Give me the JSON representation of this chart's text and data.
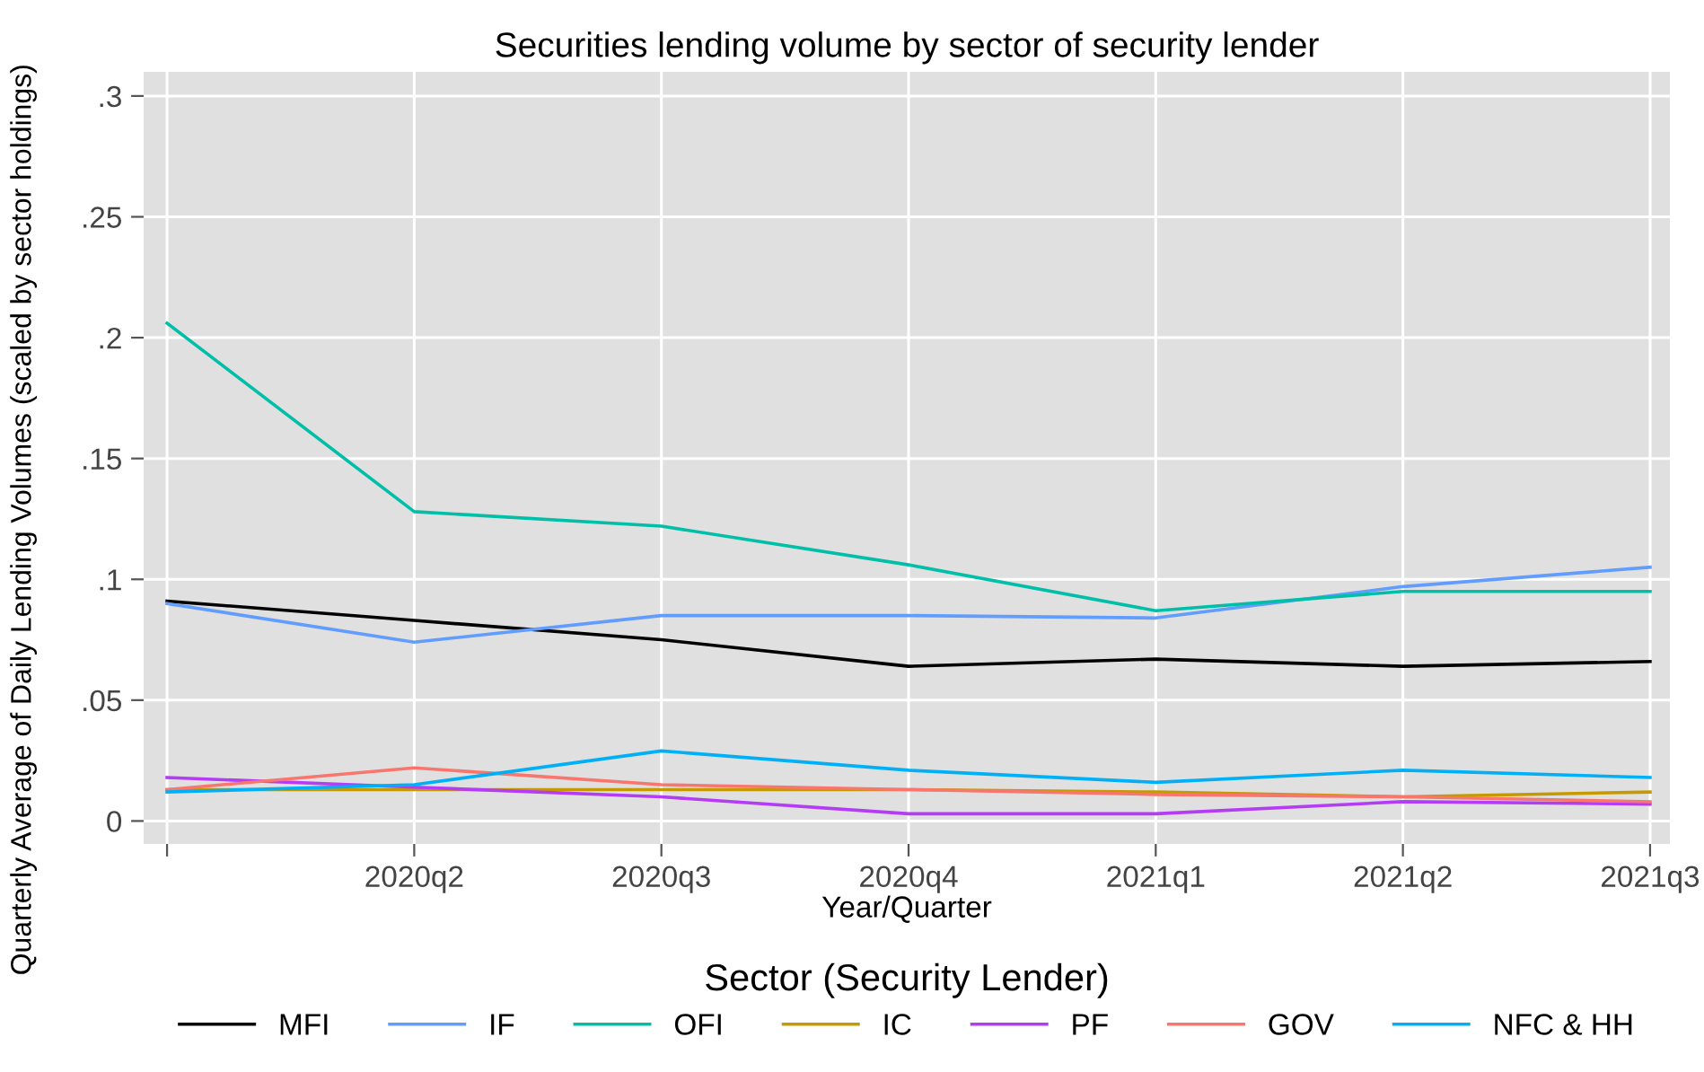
{
  "chart_data": {
    "type": "line",
    "title": "Securities lending volume by sector of security lender",
    "xlabel": "Year/Quarter",
    "ylabel": "Quarterly Average of Daily Lending Volumes (scaled by sector holdings)",
    "legend_title": "Sector (Security Lender)",
    "categories": [
      null,
      "2020q2",
      "2020q3",
      "2020q4",
      "2021q1",
      "2021q2",
      "2021q3"
    ],
    "series": [
      {
        "name": "MFI",
        "color": "#000000",
        "values": [
          0.091,
          0.083,
          0.075,
          0.064,
          0.067,
          0.064,
          0.066
        ]
      },
      {
        "name": "IF",
        "color": "#619cff",
        "values": [
          0.09,
          0.074,
          0.085,
          0.085,
          0.084,
          0.097,
          0.105
        ]
      },
      {
        "name": "OFI",
        "color": "#00bfa8",
        "values": [
          0.206,
          0.128,
          0.122,
          0.106,
          0.087,
          0.095,
          0.095
        ]
      },
      {
        "name": "IC",
        "color": "#c49a00",
        "values": [
          0.013,
          0.013,
          0.013,
          0.013,
          0.012,
          0.01,
          0.012
        ]
      },
      {
        "name": "PF",
        "color": "#b43cf5",
        "values": [
          0.018,
          0.014,
          0.01,
          0.003,
          0.003,
          0.008,
          0.007
        ]
      },
      {
        "name": "GOV",
        "color": "#f8766d",
        "values": [
          0.013,
          0.022,
          0.015,
          0.013,
          0.011,
          0.01,
          0.008
        ]
      },
      {
        "name": "NFC & HH",
        "color": "#00b0f6",
        "values": [
          0.012,
          0.015,
          0.029,
          0.021,
          0.016,
          0.021,
          0.018
        ]
      }
    ],
    "ylim": [
      -0.0095,
      0.31
    ],
    "yticks": [
      {
        "value": 0,
        "label": "0"
      },
      {
        "value": 0.05,
        "label": ".05"
      },
      {
        "value": 0.1,
        "label": ".1"
      },
      {
        "value": 0.15,
        "label": ".15"
      },
      {
        "value": 0.2,
        "label": ".2"
      },
      {
        "value": 0.25,
        "label": ".25"
      },
      {
        "value": 0.3,
        "label": ".3"
      }
    ],
    "grid": true,
    "legend": "bottom",
    "line_style": "solid",
    "marker": "none"
  }
}
